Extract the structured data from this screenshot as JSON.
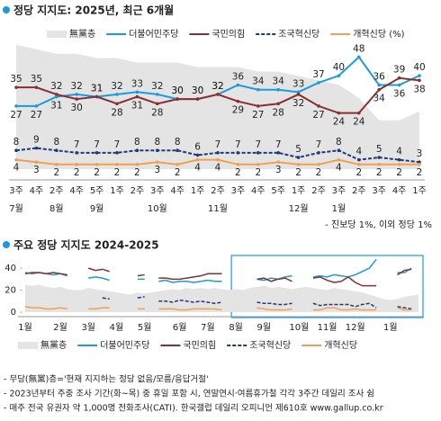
{
  "chart_data": [
    {
      "type": "line",
      "title": "정당 지지도: 2025년, 최근 6개월",
      "categories": [
        "3주",
        "4주",
        "2주",
        "4주",
        "5주",
        "1주",
        "2주",
        "3주",
        "4주",
        "1주",
        "2주",
        "3주",
        "4주",
        "5주",
        "1주",
        "2주",
        "3주",
        "2주",
        "3주",
        "4주",
        "1주"
      ],
      "month_labels": [
        "7월",
        null,
        "8월",
        null,
        "9월",
        null,
        null,
        "10월",
        null,
        null,
        "11월",
        null,
        null,
        null,
        "12월",
        null,
        "1월",
        null,
        null,
        null,
        null
      ],
      "ylim": [
        0,
        57
      ],
      "y2lim": [
        0,
        30
      ],
      "series": [
        {
          "name": "無黨층",
          "color": "#e4e4e4",
          "kind": "area",
          "axis": "y2",
          "values": [
            28,
            27,
            26,
            26,
            25,
            25,
            24,
            24,
            24,
            23,
            23,
            23,
            22,
            22,
            21,
            20,
            19,
            16,
            11,
            11,
            13
          ]
        },
        {
          "name": "더불어민주당",
          "color": "#1a9be0",
          "values": [
            27,
            27,
            31,
            32,
            31,
            32,
            33,
            32,
            30,
            30,
            32,
            36,
            34,
            34,
            33,
            37,
            40,
            48,
            36,
            36,
            40
          ]
        },
        {
          "name": "국민의힘",
          "color": "#8b2e2e",
          "values": [
            35,
            35,
            32,
            30,
            31,
            28,
            31,
            28,
            30,
            30,
            32,
            29,
            27,
            28,
            32,
            27,
            24,
            24,
            34,
            39,
            38
          ]
        },
        {
          "name": "조국혁신당",
          "color": "#1f3a78",
          "dashed": true,
          "values": [
            8,
            9,
            8,
            7,
            7,
            7,
            8,
            8,
            8,
            6,
            7,
            7,
            7,
            7,
            5,
            7,
            8,
            4,
            5,
            4,
            3
          ]
        },
        {
          "name": "개혁신당 (%)",
          "color": "#f0a050",
          "values": [
            4,
            3,
            2,
            2,
            2,
            2,
            2,
            3,
            2,
            4,
            4,
            2,
            2,
            3,
            2,
            2,
            4,
            2,
            2,
            2,
            2
          ]
        }
      ],
      "note": "- 진보당 1%, 이외 정당 1%"
    },
    {
      "type": "line",
      "title": "주요 정당 지지도 2024-2025",
      "categories": [
        "1월",
        null,
        null,
        null,
        null,
        "2월",
        null,
        null,
        null,
        "3월",
        null,
        null,
        null,
        "4월",
        null,
        null,
        null,
        "5월",
        null,
        null,
        null,
        null,
        "6월",
        null,
        null,
        null,
        "7월",
        null,
        null,
        null,
        "8월",
        null,
        null,
        null,
        "9월",
        null,
        null,
        null,
        null,
        "10월",
        null,
        null,
        null,
        "11월",
        null,
        null,
        null,
        "12월",
        null,
        null,
        null,
        null,
        "1월",
        null,
        null,
        null,
        null
      ],
      "ylim": [
        0,
        45
      ],
      "yticks": [
        0,
        20,
        40
      ],
      "series": [
        {
          "name": "無黨층",
          "color": "#e4e4e4",
          "kind": "area",
          "values": [
            25,
            24,
            25,
            23,
            22,
            23,
            21,
            20,
            20,
            22,
            21,
            20,
            19,
            18,
            17,
            16,
            18,
            17,
            18,
            19,
            20,
            21,
            20,
            22,
            21,
            22,
            21,
            22,
            21,
            20,
            21,
            20,
            22,
            23,
            24,
            22,
            23,
            22,
            21,
            22,
            23,
            22,
            21,
            20,
            22,
            21,
            20,
            19,
            18,
            16,
            14,
            12,
            11,
            12,
            14,
            15,
            16
          ]
        },
        {
          "name": "더불어민주당",
          "color": "#1a9be0",
          "values": [
            36,
            35,
            36,
            35,
            34,
            35,
            33,
            null,
            null,
            31,
            32,
            31,
            29,
            null,
            null,
            null,
            30,
            30,
            null,
            28,
            29,
            27,
            28,
            28,
            27,
            28,
            29,
            28,
            28,
            null,
            null,
            null,
            null,
            30,
            29,
            31,
            30,
            32,
            33,
            null,
            null,
            32,
            33,
            32,
            34,
            33,
            32,
            34,
            37,
            40,
            48,
            null,
            null,
            36,
            36,
            40,
            null
          ]
        },
        {
          "name": "국민의힘",
          "color": "#8b2e2e",
          "values": [
            35,
            36,
            36,
            35,
            36,
            35,
            34,
            null,
            null,
            40,
            38,
            39,
            37,
            null,
            null,
            null,
            33,
            34,
            null,
            31,
            31,
            30,
            30,
            31,
            32,
            33,
            35,
            35,
            35,
            null,
            null,
            null,
            null,
            30,
            31,
            28,
            30,
            31,
            28,
            null,
            null,
            31,
            32,
            29,
            27,
            28,
            32,
            27,
            24,
            24,
            24,
            null,
            null,
            34,
            38,
            39,
            null
          ]
        },
        {
          "name": "조국혁신당",
          "color": "#1f3a78",
          "dashed": true,
          "values": [
            null,
            null,
            null,
            null,
            null,
            null,
            null,
            null,
            null,
            null,
            null,
            13,
            12,
            null,
            null,
            null,
            13,
            14,
            null,
            10,
            10,
            9,
            11,
            10,
            9,
            10,
            9,
            8,
            9,
            null,
            null,
            null,
            null,
            9,
            8,
            8,
            7,
            7,
            8,
            null,
            null,
            8,
            6,
            7,
            7,
            7,
            7,
            5,
            7,
            8,
            4,
            null,
            null,
            5,
            4,
            3,
            null
          ]
        },
        {
          "name": "개혁신당",
          "color": "#f0a050",
          "values": [
            5,
            4,
            4,
            3,
            3,
            4,
            3,
            null,
            null,
            3,
            3,
            4,
            4,
            null,
            null,
            null,
            3,
            3,
            null,
            3,
            3,
            3,
            2,
            2,
            3,
            3,
            3,
            3,
            2,
            null,
            null,
            null,
            null,
            4,
            3,
            2,
            2,
            2,
            3,
            null,
            null,
            2,
            2,
            4,
            4,
            2,
            2,
            3,
            2,
            2,
            2,
            null,
            null,
            4,
            2,
            2,
            null
          ]
        }
      ]
    }
  ],
  "notes": [
    "- 무당(無黨)층='현재 지지하는 정당 없음/모름/응답거절'",
    "- 2023년부터 주중 조사 기간(화~목) 중 휴일 포함 시, 연말연시·여름휴가철 각각 3주간 데일리 조사 쉼",
    "- 매주 전국 유권자 약 1,000명 전화조사(CATI). 한국갤럽 데일리 오피니언 제610호 www.gallup.co.kr"
  ]
}
